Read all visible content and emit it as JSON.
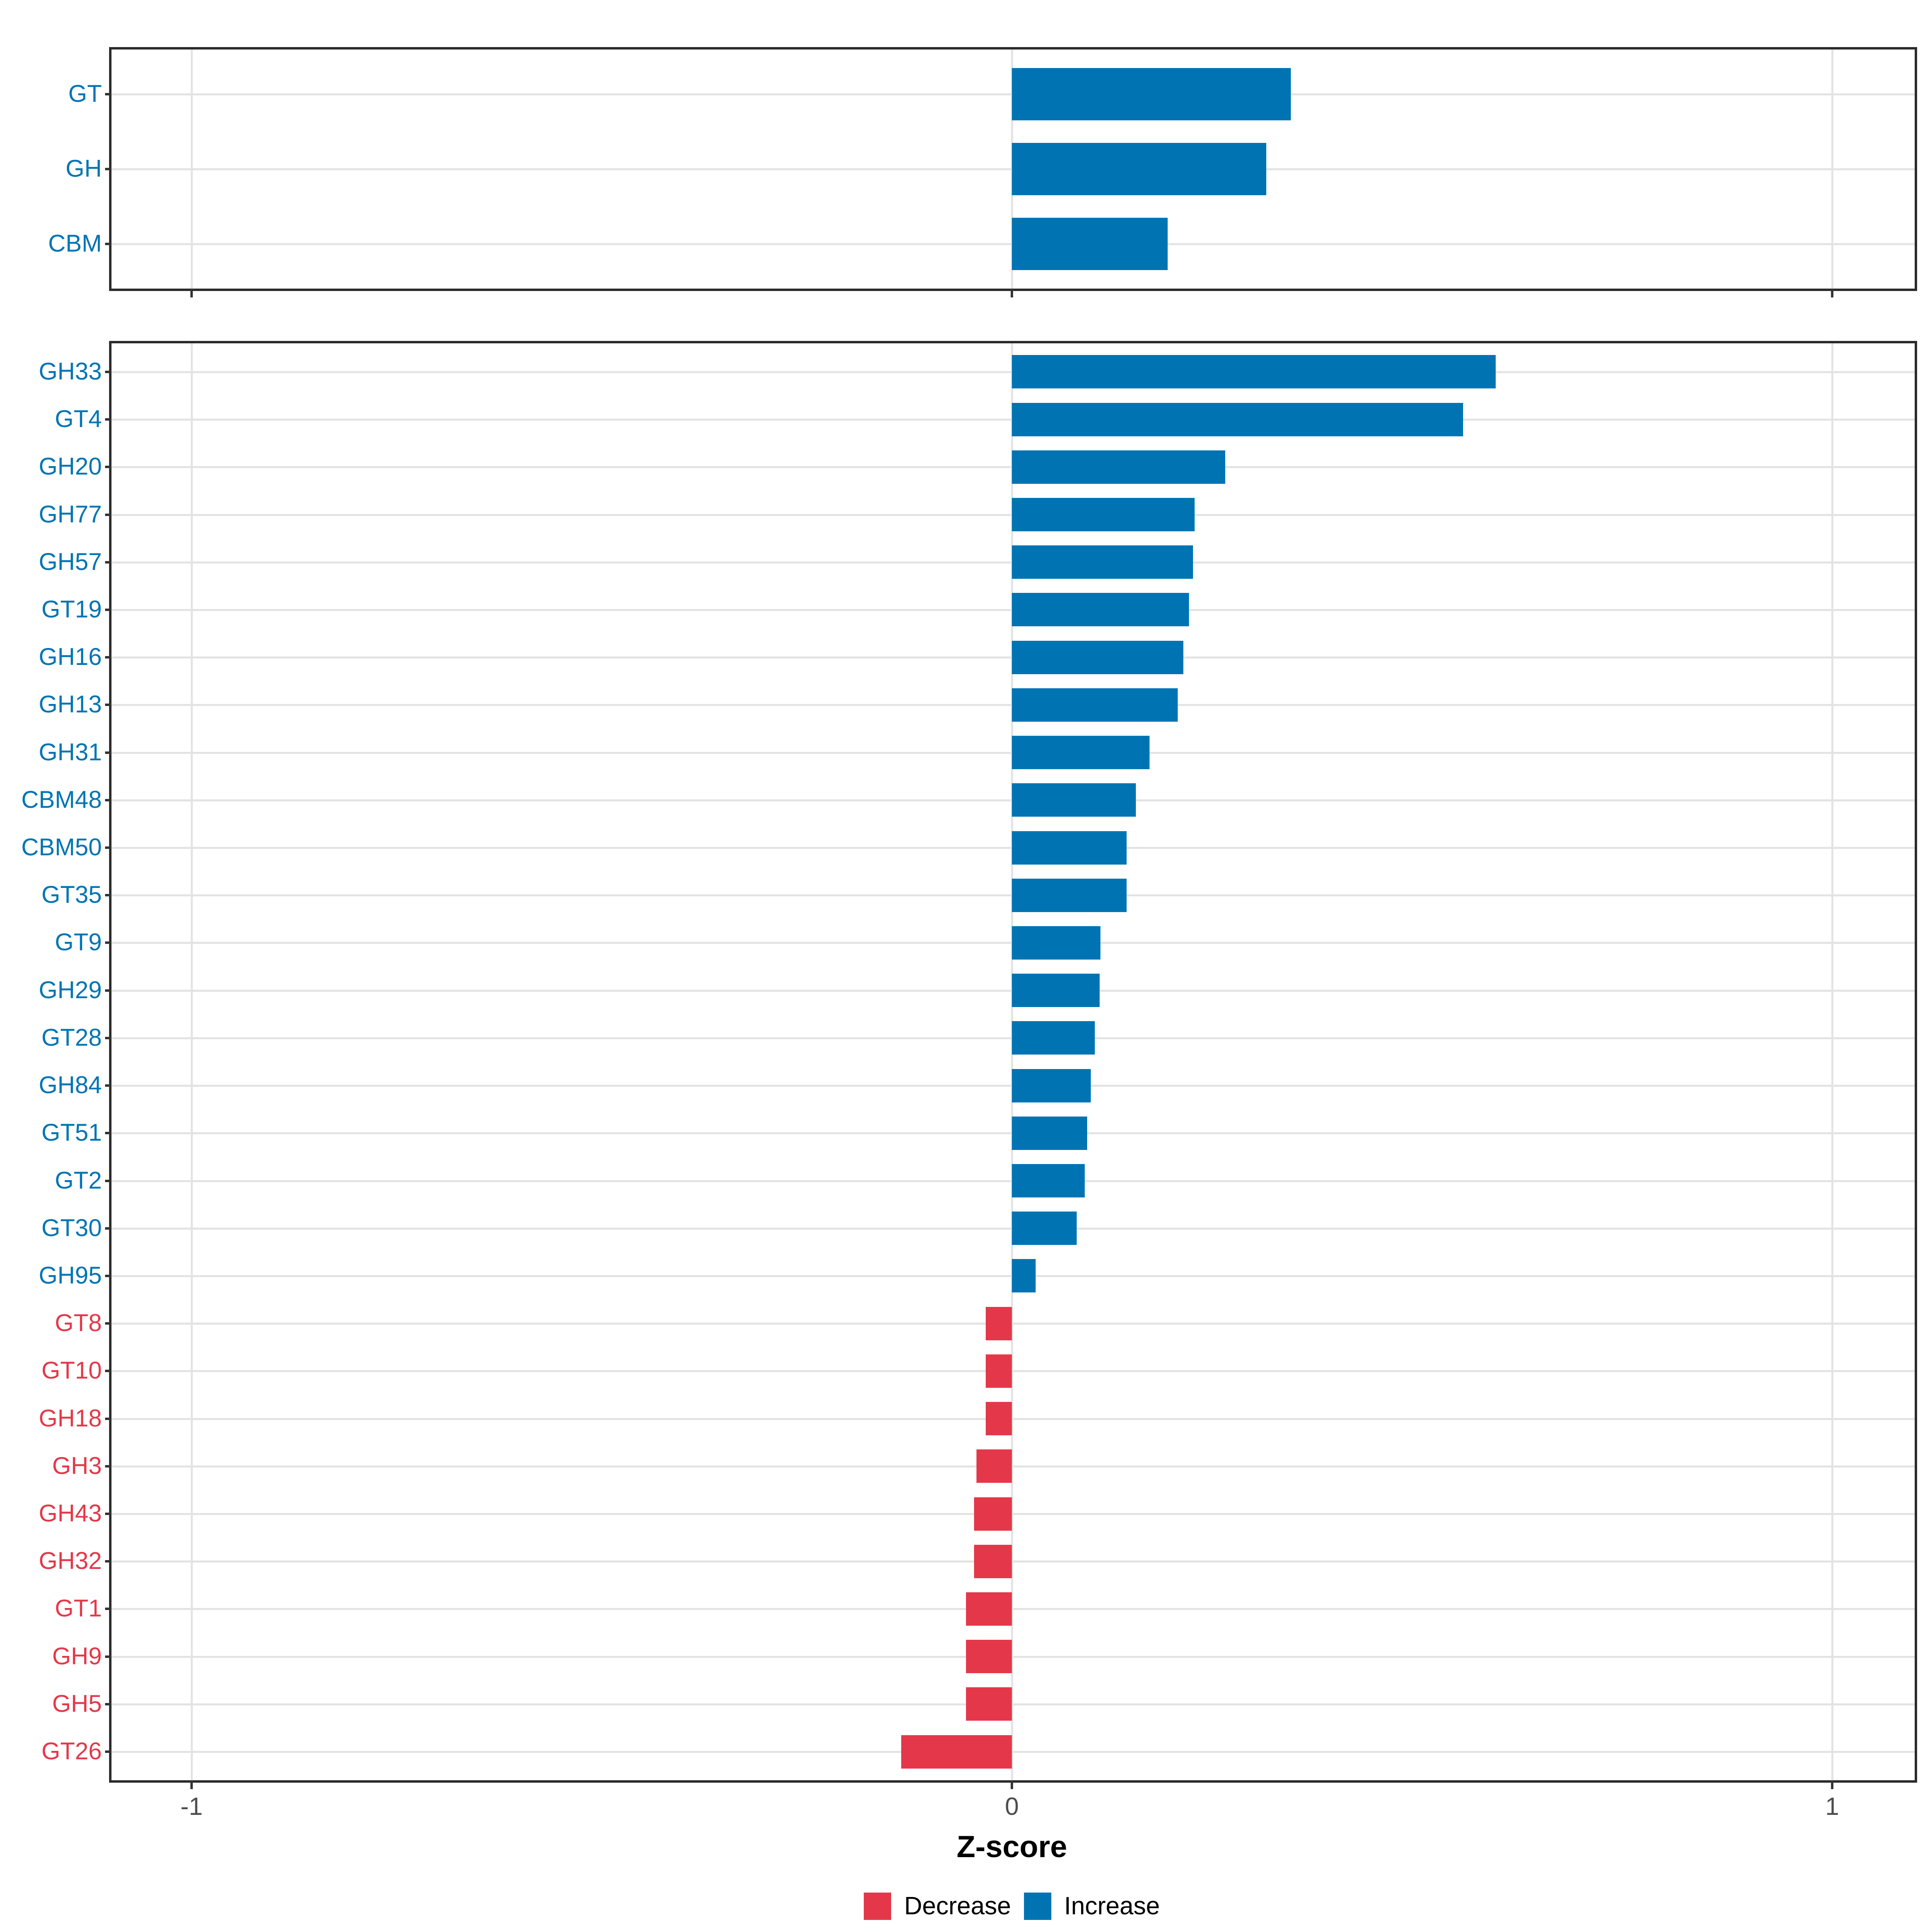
{
  "chart_data": [
    {
      "type": "bar",
      "orientation": "horizontal",
      "panel": "cazyme-class-summary",
      "categories": [
        "GT",
        "GH",
        "CBM"
      ],
      "values": [
        0.34,
        0.31,
        0.19
      ],
      "xlim": [
        -1.1,
        1.1
      ],
      "grid": true,
      "xlabel": "Z-score"
    },
    {
      "type": "bar",
      "orientation": "horizontal",
      "panel": "cazyme-families",
      "categories": [
        "GH33",
        "GT4",
        "GH20",
        "GH77",
        "GH57",
        "GT19",
        "GH16",
        "GH13",
        "GH31",
        "CBM48",
        "CBM50",
        "GT35",
        "GT9",
        "GH29",
        "GT28",
        "GH84",
        "GT51",
        "GT2",
        "GT30",
        "GH95",
        "GT8",
        "GT10",
        "GH18",
        "GH3",
        "GH43",
        "GH32",
        "GT1",
        "GH9",
        "GH5",
        "GT26"
      ],
      "values": [
        0.59,
        0.55,
        0.26,
        0.223,
        0.221,
        0.216,
        0.209,
        0.202,
        0.168,
        0.151,
        0.14,
        0.14,
        0.108,
        0.107,
        0.101,
        0.096,
        0.092,
        0.089,
        0.079,
        0.029,
        -0.032,
        -0.032,
        -0.032,
        -0.043,
        -0.046,
        -0.046,
        -0.056,
        -0.056,
        -0.056,
        -0.135
      ],
      "xlim": [
        -1.1,
        1.1
      ],
      "grid": true,
      "xlabel": "Z-score"
    }
  ],
  "axis": {
    "title": "Z-score",
    "ticks": [
      "-1",
      "0",
      "1"
    ],
    "tick_values": [
      -1,
      0,
      1
    ]
  },
  "legend": {
    "items": [
      {
        "label": "Decrease",
        "color": "#e4384a",
        "meaning": "negative z-score"
      },
      {
        "label": "Increase",
        "color": "#0074b3",
        "meaning": "positive z-score"
      }
    ]
  },
  "colors": {
    "increase": "#0074b3",
    "decrease": "#e4384a",
    "gridline": "#e3e3e3",
    "panel_border": "#2b2b2b",
    "tick_mark": "#333333",
    "tick_text": "#4d4d4d"
  }
}
